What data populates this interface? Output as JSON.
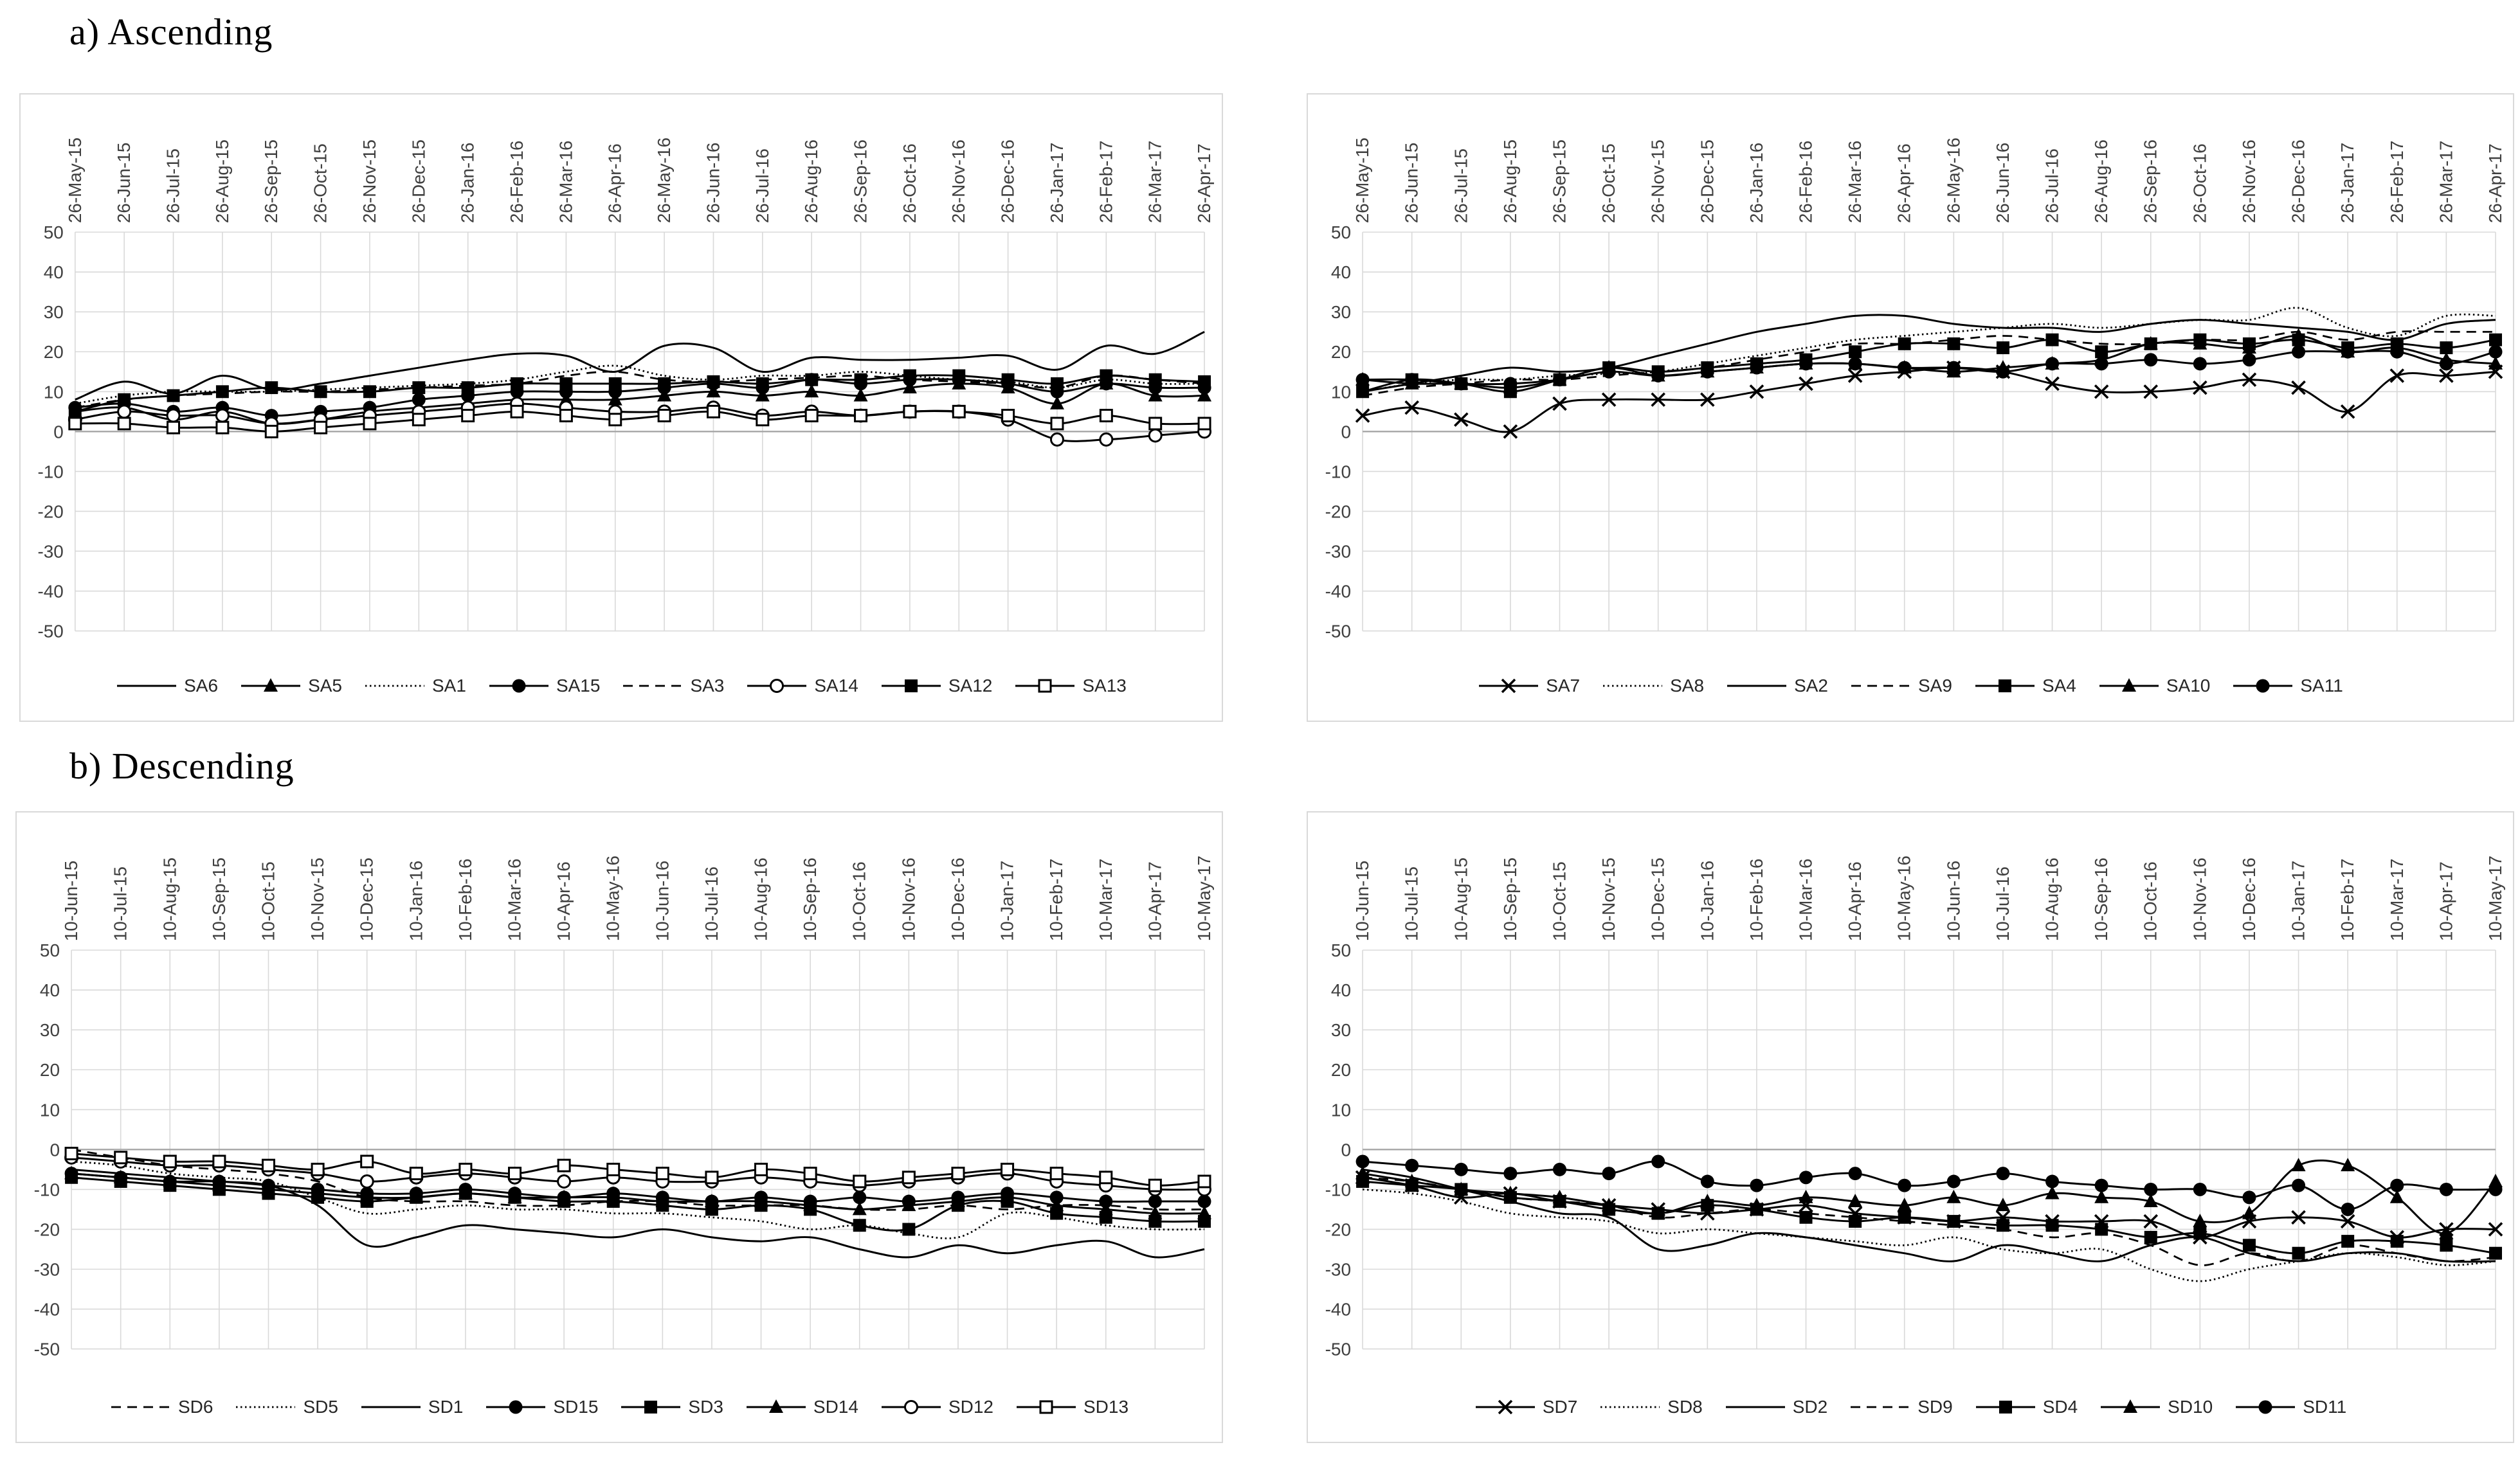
{
  "figure": {
    "sections": [
      {
        "id": "ascending",
        "title": "a) Ascending"
      },
      {
        "id": "descending",
        "title": "b) Descending"
      }
    ]
  },
  "colors": {
    "series_line": "#000000",
    "tick_label": "#404040",
    "gridline": "#d9d9d9",
    "zero_axis_line": "#a6a6a6",
    "panel_border": "#d9d9d9",
    "background": "#ffffff"
  },
  "axis": {
    "ymin": -50,
    "ymax": 50,
    "ystep": 10,
    "yticks": [
      50,
      40,
      30,
      20,
      10,
      0,
      -10,
      -20,
      -30,
      -40,
      -50
    ],
    "grid": true
  },
  "chart_data": [
    {
      "id": "ascending_left",
      "type": "line",
      "section": "a) Ascending",
      "ylim": [
        -50,
        50
      ],
      "legend_position": "bottom",
      "categories": [
        "26-May-15",
        "26-Jun-15",
        "26-Jul-15",
        "26-Aug-15",
        "26-Sep-15",
        "26-Oct-15",
        "26-Nov-15",
        "26-Dec-15",
        "26-Jan-16",
        "26-Feb-16",
        "26-Mar-16",
        "26-Apr-16",
        "26-May-16",
        "26-Jun-16",
        "26-Jul-16",
        "26-Aug-16",
        "26-Sep-16",
        "26-Oct-16",
        "26-Nov-16",
        "26-Dec-16",
        "26-Jan-17",
        "26-Feb-17",
        "26-Mar-17",
        "26-Apr-17"
      ],
      "series": [
        {
          "name": "SA6",
          "line": "solid",
          "marker": "none",
          "values": [
            8,
            12.5,
            9.5,
            14,
            10.5,
            12,
            14,
            16,
            18,
            19.5,
            19,
            15,
            21.5,
            21,
            15,
            18.5,
            18,
            18,
            18.5,
            19,
            15.5,
            21.5,
            19.5,
            25
          ]
        },
        {
          "name": "SA5",
          "line": "solid",
          "marker": "triangle",
          "values": [
            5,
            6,
            3,
            5,
            2,
            3,
            5,
            6,
            7,
            8,
            8,
            8,
            9,
            10,
            9,
            10,
            9,
            11,
            12,
            11,
            7,
            12,
            9,
            9
          ]
        },
        {
          "name": "SA1",
          "line": "dotted",
          "marker": "none",
          "values": [
            7,
            9,
            10,
            10,
            10,
            10.5,
            11,
            11.5,
            12,
            13,
            15,
            16.5,
            14,
            13,
            14,
            14,
            15,
            14,
            13,
            12.5,
            11,
            13,
            12,
            12
          ]
        },
        {
          "name": "SA15",
          "line": "solid",
          "marker": "circle",
          "values": [
            6,
            7,
            5,
            6,
            4,
            5,
            6,
            8,
            9,
            10,
            10,
            10,
            11,
            12,
            11,
            13,
            12,
            13,
            13,
            12,
            10,
            12,
            11,
            11
          ]
        },
        {
          "name": "SA3",
          "line": "dashed",
          "marker": "none",
          "values": [
            6,
            8,
            9,
            9.5,
            10,
            10,
            10.5,
            11,
            11.5,
            12,
            14,
            15,
            13,
            12.5,
            13,
            13.5,
            14,
            13,
            12.5,
            12,
            11,
            14,
            13,
            12
          ]
        },
        {
          "name": "SA14",
          "line": "solid",
          "marker": "circle-open",
          "values": [
            3,
            5,
            4,
            4,
            2,
            3,
            4,
            5,
            6,
            7,
            6,
            5,
            5,
            6,
            4,
            5,
            4,
            5,
            5,
            3,
            -2,
            -2,
            -1,
            0
          ]
        },
        {
          "name": "SA12",
          "line": "solid",
          "marker": "square",
          "values": [
            5,
            8,
            9,
            10,
            11,
            10,
            10,
            11,
            11,
            12,
            12,
            12,
            12,
            12.5,
            12,
            13,
            13,
            14,
            14,
            13,
            12,
            14,
            13,
            12.5
          ]
        },
        {
          "name": "SA13",
          "line": "solid",
          "marker": "square-open",
          "values": [
            2,
            2,
            1,
            1,
            0,
            1,
            2,
            3,
            4,
            5,
            4,
            3,
            4,
            5,
            3,
            4,
            4,
            5,
            5,
            4,
            2,
            4,
            2,
            2
          ]
        }
      ]
    },
    {
      "id": "ascending_right",
      "type": "line",
      "section": "a) Ascending",
      "ylim": [
        -50,
        50
      ],
      "legend_position": "bottom",
      "categories": [
        "26-May-15",
        "26-Jun-15",
        "26-Jul-15",
        "26-Aug-15",
        "26-Sep-15",
        "26-Oct-15",
        "26-Nov-15",
        "26-Dec-15",
        "26-Jan-16",
        "26-Feb-16",
        "26-Mar-16",
        "26-Apr-16",
        "26-May-16",
        "26-Jun-16",
        "26-Jul-16",
        "26-Aug-16",
        "26-Sep-16",
        "26-Oct-16",
        "26-Nov-16",
        "26-Dec-16",
        "26-Jan-17",
        "26-Feb-17",
        "26-Mar-17",
        "26-Apr-17"
      ],
      "series": [
        {
          "name": "SA7",
          "line": "solid",
          "marker": "x",
          "values": [
            4,
            6,
            3,
            0,
            7,
            8,
            8,
            8,
            10,
            12,
            14,
            15,
            16,
            15,
            12,
            10,
            10,
            11,
            13,
            11,
            5,
            14,
            14,
            15
          ]
        },
        {
          "name": "SA8",
          "line": "dotted",
          "marker": "none",
          "values": [
            10,
            12,
            13,
            13,
            14,
            14.5,
            15,
            17,
            19,
            21,
            23,
            24,
            25,
            26,
            27,
            26,
            27,
            28,
            28,
            31,
            26,
            24,
            29,
            29
          ]
        },
        {
          "name": "SA2",
          "line": "solid",
          "marker": "none",
          "values": [
            10,
            12,
            14,
            16,
            15,
            16,
            19,
            22,
            25,
            27,
            29,
            29,
            27,
            26,
            26,
            25,
            27,
            28,
            27,
            26,
            25,
            23,
            27,
            28
          ]
        },
        {
          "name": "SA9",
          "line": "dashed",
          "marker": "none",
          "values": [
            9,
            11,
            12,
            13,
            13,
            14,
            15,
            16,
            18,
            20,
            22,
            22,
            23,
            24,
            23,
            22,
            22,
            23,
            23,
            25,
            23,
            25,
            25,
            25
          ]
        },
        {
          "name": "SA4",
          "line": "solid",
          "marker": "square",
          "values": [
            10,
            13,
            12,
            10,
            13,
            16,
            15,
            16,
            17,
            18,
            20,
            22,
            22,
            21,
            23,
            20,
            22,
            23,
            22,
            23,
            21,
            22,
            21,
            23
          ]
        },
        {
          "name": "SA10",
          "line": "solid",
          "marker": "triangle",
          "values": [
            13,
            12,
            12,
            11,
            13,
            16,
            14,
            15,
            16,
            17,
            17,
            16,
            15,
            16,
            17,
            18,
            22,
            22,
            21,
            24,
            20,
            21,
            18,
            17
          ]
        },
        {
          "name": "SA11",
          "line": "solid",
          "marker": "circle",
          "values": [
            13,
            13,
            12,
            12,
            13,
            15,
            14,
            15,
            16,
            17,
            17,
            16,
            16,
            15,
            17,
            17,
            18,
            17,
            18,
            20,
            20,
            20,
            17,
            20
          ]
        }
      ]
    },
    {
      "id": "descending_left",
      "type": "line",
      "section": "b) Descending",
      "ylim": [
        -50,
        50
      ],
      "legend_position": "bottom",
      "categories": [
        "10-Jun-15",
        "10-Jul-15",
        "10-Aug-15",
        "10-Sep-15",
        "10-Oct-15",
        "10-Nov-15",
        "10-Dec-15",
        "10-Jan-16",
        "10-Feb-16",
        "10-Mar-16",
        "10-Apr-16",
        "10-May-16",
        "10-Jun-16",
        "10-Jul-16",
        "10-Aug-16",
        "10-Sep-16",
        "10-Oct-16",
        "10-Nov-16",
        "10-Dec-16",
        "10-Jan-17",
        "10-Feb-17",
        "10-Mar-17",
        "10-Apr-17",
        "10-May-17"
      ],
      "series": [
        {
          "name": "SD6",
          "line": "dashed",
          "marker": "none",
          "values": [
            0,
            -2,
            -4,
            -5,
            -6,
            -8,
            -12,
            -13,
            -13,
            -14,
            -14,
            -13,
            -13,
            -14,
            -14,
            -14,
            -15,
            -15,
            -14,
            -15,
            -14,
            -14,
            -15,
            -15
          ]
        },
        {
          "name": "SD5",
          "line": "dotted",
          "marker": "none",
          "values": [
            -3,
            -4,
            -6,
            -7,
            -8,
            -12,
            -16,
            -15,
            -14,
            -15,
            -15,
            -16,
            -16,
            -17,
            -18,
            -20,
            -19,
            -21,
            -22,
            -16,
            -17,
            -19,
            -20,
            -20
          ]
        },
        {
          "name": "SD1",
          "line": "solid",
          "marker": "none",
          "values": [
            -5,
            -6,
            -7,
            -8,
            -9,
            -14,
            -24,
            -22,
            -19,
            -20,
            -21,
            -22,
            -20,
            -22,
            -23,
            -22,
            -25,
            -27,
            -24,
            -26,
            -24,
            -23,
            -27,
            -25
          ]
        },
        {
          "name": "SD15",
          "line": "solid",
          "marker": "circle",
          "values": [
            -6,
            -7,
            -8,
            -8,
            -9,
            -10,
            -11,
            -11,
            -10,
            -11,
            -12,
            -11,
            -12,
            -13,
            -12,
            -13,
            -12,
            -13,
            -12,
            -11,
            -12,
            -13,
            -13,
            -13
          ]
        },
        {
          "name": "SD3",
          "line": "solid",
          "marker": "square",
          "values": [
            -7,
            -8,
            -9,
            -10,
            -11,
            -12,
            -13,
            -12,
            -11,
            -12,
            -13,
            -13,
            -14,
            -15,
            -14,
            -15,
            -19,
            -20,
            -14,
            -13,
            -16,
            -17,
            -18,
            -18
          ]
        },
        {
          "name": "SD14",
          "line": "solid",
          "marker": "triangle",
          "values": [
            -6,
            -7,
            -8,
            -9,
            -10,
            -11,
            -12,
            -12,
            -11,
            -12,
            -12,
            -12,
            -13,
            -13,
            -13,
            -14,
            -15,
            -14,
            -13,
            -12,
            -14,
            -15,
            -16,
            -16
          ]
        },
        {
          "name": "SD12",
          "line": "solid",
          "marker": "circle-open",
          "values": [
            -2,
            -3,
            -4,
            -4,
            -5,
            -6,
            -8,
            -7,
            -6,
            -7,
            -8,
            -7,
            -8,
            -8,
            -7,
            -8,
            -9,
            -8,
            -7,
            -6,
            -8,
            -9,
            -10,
            -10
          ]
        },
        {
          "name": "SD13",
          "line": "solid",
          "marker": "square-open",
          "values": [
            -1,
            -2,
            -3,
            -3,
            -4,
            -5,
            -3,
            -6,
            -5,
            -6,
            -4,
            -5,
            -6,
            -7,
            -5,
            -6,
            -8,
            -7,
            -6,
            -5,
            -6,
            -7,
            -9,
            -8
          ]
        }
      ]
    },
    {
      "id": "descending_right",
      "type": "line",
      "section": "b) Descending",
      "ylim": [
        -50,
        50
      ],
      "legend_position": "bottom",
      "categories": [
        "10-Jun-15",
        "10-Jul-15",
        "10-Aug-15",
        "10-Sep-15",
        "10-Oct-15",
        "10-Nov-15",
        "10-Dec-15",
        "10-Jan-16",
        "10-Feb-16",
        "10-Mar-16",
        "10-Apr-16",
        "10-May-16",
        "10-Jun-16",
        "10-Jul-16",
        "10-Aug-16",
        "10-Sep-16",
        "10-Oct-16",
        "10-Nov-16",
        "10-Dec-16",
        "10-Jan-17",
        "10-Feb-17",
        "10-Mar-17",
        "10-Apr-17",
        "10-May-17"
      ],
      "series": [
        {
          "name": "SD7",
          "line": "solid",
          "marker": "x",
          "values": [
            -7,
            -9,
            -12,
            -11,
            -13,
            -14,
            -15,
            -16,
            -15,
            -14,
            -16,
            -17,
            -18,
            -17,
            -18,
            -18,
            -18,
            -22,
            -18,
            -17,
            -18,
            -22,
            -20,
            -20
          ]
        },
        {
          "name": "SD8",
          "line": "dotted",
          "marker": "none",
          "values": [
            -10,
            -11,
            -13,
            -16,
            -17,
            -18,
            -21,
            -20,
            -21,
            -22,
            -23,
            -24,
            -22,
            -25,
            -26,
            -25,
            -30,
            -33,
            -30,
            -28,
            -26,
            -27,
            -29,
            -28
          ]
        },
        {
          "name": "SD2",
          "line": "solid",
          "marker": "none",
          "values": [
            -5,
            -7,
            -10,
            -13,
            -16,
            -17,
            -25,
            -24,
            -21,
            -22,
            -24,
            -26,
            -28,
            -24,
            -26,
            -28,
            -24,
            -22,
            -26,
            -28,
            -26,
            -26,
            -28,
            -28
          ]
        },
        {
          "name": "SD9",
          "line": "dashed",
          "marker": "none",
          "values": [
            -7,
            -8,
            -10,
            -12,
            -13,
            -14,
            -17,
            -16,
            -15,
            -16,
            -17,
            -18,
            -19,
            -20,
            -22,
            -21,
            -24,
            -29,
            -26,
            -28,
            -24,
            -26,
            -28,
            -27
          ]
        },
        {
          "name": "SD4",
          "line": "solid",
          "marker": "square",
          "values": [
            -8,
            -9,
            -10,
            -12,
            -13,
            -15,
            -16,
            -14,
            -15,
            -17,
            -18,
            -17,
            -18,
            -19,
            -19,
            -20,
            -22,
            -21,
            -24,
            -26,
            -23,
            -23,
            -24,
            -26
          ]
        },
        {
          "name": "SD10",
          "line": "solid",
          "marker": "triangle",
          "values": [
            -6,
            -8,
            -10,
            -11,
            -12,
            -14,
            -16,
            -13,
            -14,
            -12,
            -13,
            -14,
            -12,
            -14,
            -11,
            -12,
            -13,
            -18,
            -16,
            -4,
            -4,
            -12,
            -21,
            -8
          ]
        },
        {
          "name": "SD11",
          "line": "solid",
          "marker": "circle",
          "values": [
            -3,
            -4,
            -5,
            -6,
            -5,
            -6,
            -3,
            -8,
            -9,
            -7,
            -6,
            -9,
            -8,
            -6,
            -8,
            -9,
            -10,
            -10,
            -12,
            -9,
            -15,
            -9,
            -10,
            -10
          ]
        }
      ]
    }
  ]
}
